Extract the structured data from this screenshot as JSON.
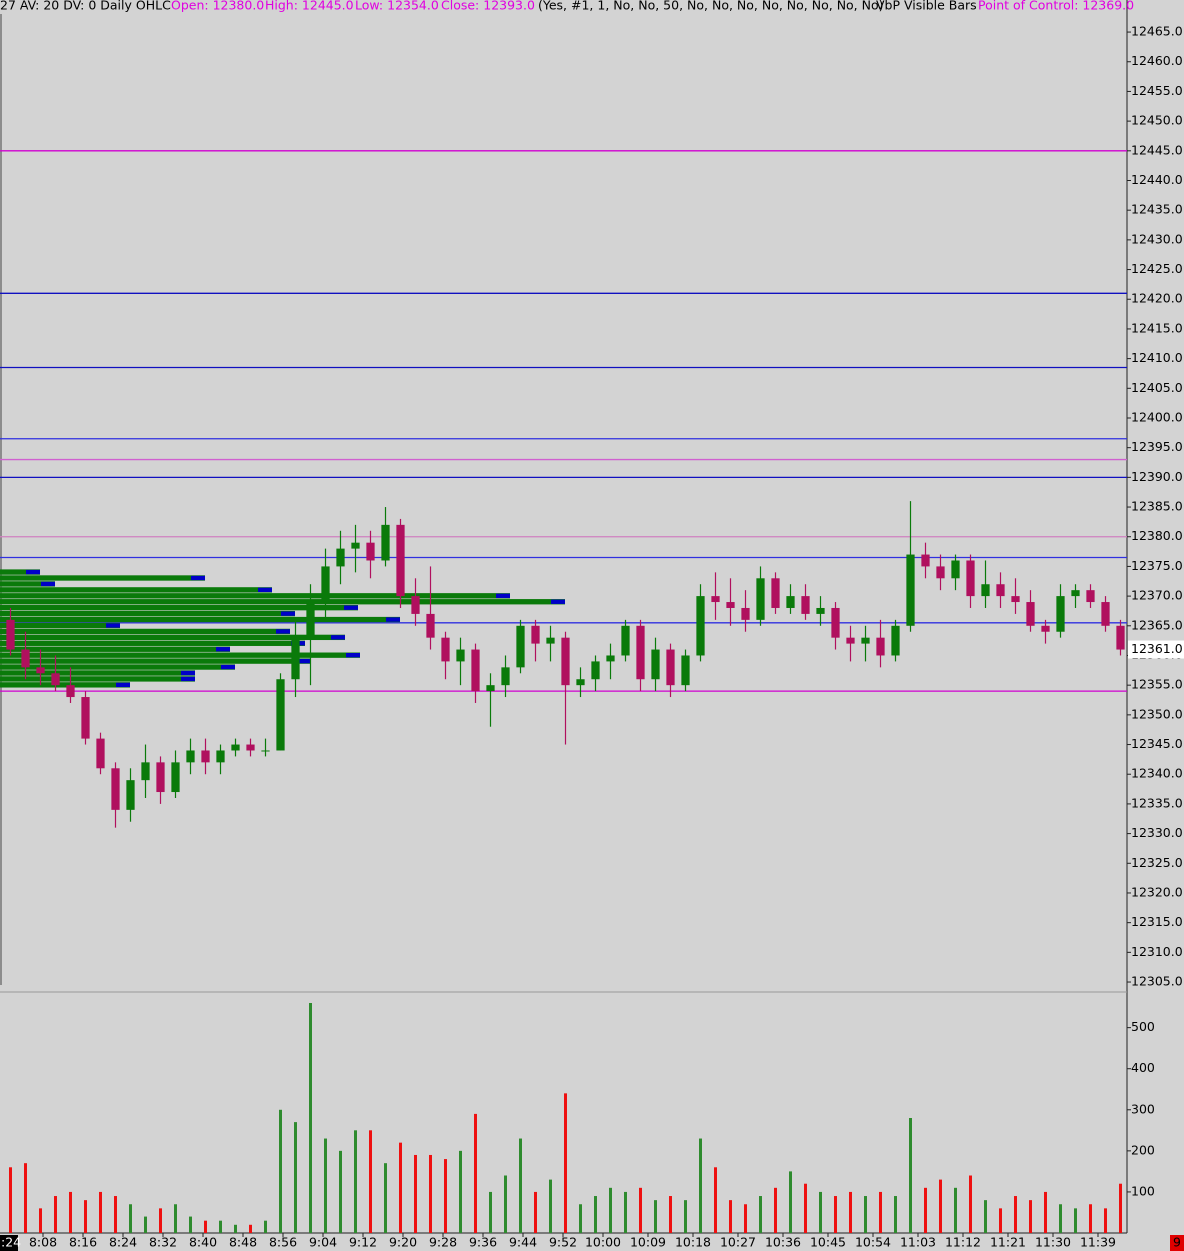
{
  "chart_data": {
    "type": "candlestick",
    "header": {
      "study": "27 AV: 20 DV: 0 Daily OHLC",
      "open": "Open: 12380.0",
      "high": "High: 12445.0",
      "low": "Low: 12354.0",
      "close": "Close: 12393.0",
      "settings": "(Yes, #1, 1, No, No, 50, No, No, No, No, No, No, No, No)",
      "vbp": "VbP Visible Bars",
      "poc": "Point of Control: 12369.0"
    },
    "header_color": "#e000e0",
    "up_color": "#0a7a0a",
    "down_color": "#b0105e",
    "xlim": [
      "8:00",
      "11:45"
    ],
    "xticks": [
      "8:08",
      "8:16",
      "8:24",
      "8:32",
      "8:40",
      "8:48",
      "8:56",
      "9:04",
      "9:12",
      "9:20",
      "9:28",
      "9:36",
      "9:44",
      "9:52",
      "10:00",
      "10:09",
      "10:18",
      "10:27",
      "10:36",
      "10:45",
      "10:54",
      "11:03",
      "11:12",
      "11:21",
      "11:30",
      "11:39"
    ],
    "x": [
      "8:00",
      "8:03",
      "8:06",
      "8:09",
      "8:12",
      "8:15",
      "8:18",
      "8:21",
      "8:24",
      "8:27",
      "8:30",
      "8:33",
      "8:36",
      "8:39",
      "8:42",
      "8:45",
      "8:48",
      "8:51",
      "8:54",
      "8:57",
      "9:00",
      "9:03",
      "9:06",
      "9:09",
      "9:12",
      "9:15",
      "9:18",
      "9:21",
      "9:24",
      "9:27",
      "9:30",
      "9:33",
      "9:36",
      "9:39",
      "9:42",
      "9:45",
      "9:48",
      "9:51",
      "9:54",
      "9:57",
      "10:00",
      "10:03",
      "10:06",
      "10:09",
      "10:12",
      "10:15",
      "10:18",
      "10:21",
      "10:24",
      "10:27",
      "10:30",
      "10:33",
      "10:36",
      "10:39",
      "10:42",
      "10:45",
      "10:48",
      "10:51",
      "10:54",
      "10:57",
      "11:00",
      "11:03",
      "11:06",
      "11:09",
      "11:12",
      "11:15",
      "11:18",
      "11:21",
      "11:24",
      "11:27",
      "11:30",
      "11:33",
      "11:36",
      "11:39",
      "11:42"
    ],
    "open": [
      12366,
      12361,
      12358,
      12357,
      12355,
      12353,
      12346,
      12341,
      12334,
      12339,
      12342,
      12337,
      12342,
      12344,
      12342,
      12344,
      12345,
      12344,
      12344,
      12356,
      12363,
      12369,
      12375,
      12378,
      12379,
      12376,
      12382,
      12370,
      12367,
      12363,
      12359,
      12361,
      12354,
      12355,
      12358,
      12365,
      12362,
      12363,
      12355,
      12356,
      12359,
      12360,
      12365,
      12356,
      12361,
      12355,
      12360,
      12370,
      12369,
      12368,
      12366,
      12373,
      12368,
      12370,
      12367,
      12368,
      12363,
      12362,
      12363,
      12360,
      12365,
      12377,
      12375,
      12373,
      12376,
      12370,
      12372,
      12370,
      12369,
      12365,
      12364,
      12370,
      12371,
      12369,
      12365
    ],
    "high": [
      12368,
      12364,
      12361,
      12360,
      12358,
      12354,
      12347,
      12342,
      12341,
      12345,
      12343,
      12344,
      12346,
      12346,
      12345,
      12346,
      12346,
      12346,
      12357,
      12366,
      12372,
      12378,
      12381,
      12382,
      12381,
      12385,
      12383,
      12373,
      12375,
      12364,
      12363,
      12362,
      12357,
      12360,
      12366,
      12366,
      12365,
      12364,
      12358,
      12360,
      12362,
      12366,
      12366,
      12363,
      12362,
      12361,
      12372,
      12374,
      12373,
      12371,
      12375,
      12374,
      12372,
      12372,
      12370,
      12369,
      12365,
      12365,
      12366,
      12366,
      12386,
      12379,
      12377,
      12377,
      12377,
      12376,
      12374,
      12373,
      12371,
      12366,
      12372,
      12372,
      12372,
      12370,
      12366
    ],
    "low": [
      12360,
      12356,
      12355,
      12354,
      12352,
      12345,
      12340,
      12331,
      12332,
      12336,
      12335,
      12336,
      12340,
      12340,
      12340,
      12343,
      12343,
      12343,
      12344,
      12353,
      12355,
      12366,
      12372,
      12374,
      12373,
      12375,
      12368,
      12365,
      12361,
      12356,
      12355,
      12352,
      12348,
      12353,
      12357,
      12359,
      12359,
      12345,
      12353,
      12354,
      12356,
      12359,
      12354,
      12354,
      12353,
      12354,
      12359,
      12366,
      12365,
      12364,
      12365,
      12367,
      12367,
      12366,
      12365,
      12361,
      12359,
      12359,
      12358,
      12359,
      12364,
      12373,
      12371,
      12371,
      12368,
      12368,
      12368,
      12367,
      12364,
      12362,
      12363,
      12368,
      12368,
      12364,
      12360
    ],
    "close": [
      12361,
      12358,
      12357,
      12355,
      12353,
      12346,
      12341,
      12334,
      12339,
      12342,
      12337,
      12342,
      12344,
      12342,
      12344,
      12345,
      12344,
      12344,
      12356,
      12363,
      12369,
      12375,
      12378,
      12379,
      12376,
      12382,
      12370,
      12367,
      12363,
      12359,
      12361,
      12354,
      12355,
      12358,
      12365,
      12362,
      12363,
      12355,
      12356,
      12359,
      12360,
      12365,
      12356,
      12361,
      12355,
      12360,
      12370,
      12369,
      12368,
      12366,
      12373,
      12368,
      12370,
      12367,
      12368,
      12363,
      12362,
      12363,
      12360,
      12365,
      12377,
      12375,
      12373,
      12376,
      12370,
      12372,
      12370,
      12369,
      12365,
      12364,
      12370,
      12371,
      12369,
      12365,
      12361
    ],
    "ylim": [
      12304.5,
      12470.4
    ],
    "yticks": [
      {
        "value": 12465,
        "label": "12465.0"
      },
      {
        "value": 12460,
        "label": "12460.0"
      },
      {
        "value": 12455,
        "label": "12455.0"
      },
      {
        "value": 12450,
        "label": "12450.0"
      },
      {
        "value": 12445,
        "label": "12445.0"
      },
      {
        "value": 12440,
        "label": "12440.0"
      },
      {
        "value": 12435,
        "label": "12435.0"
      },
      {
        "value": 12430,
        "label": "12430.0"
      },
      {
        "value": 12425,
        "label": "12425.0"
      },
      {
        "value": 12420,
        "label": "12420.0"
      },
      {
        "value": 12415,
        "label": "12415.0"
      },
      {
        "value": 12410,
        "label": "12410.0"
      },
      {
        "value": 12405,
        "label": "12405.0"
      },
      {
        "value": 12400,
        "label": "12400.0"
      },
      {
        "value": 12395,
        "label": "12395.0"
      },
      {
        "value": 12390,
        "label": "12390.0"
      },
      {
        "value": 12385,
        "label": "12385.0"
      },
      {
        "value": 12380,
        "label": "12380.0"
      },
      {
        "value": 12375,
        "label": "12375.0"
      },
      {
        "value": 12370,
        "label": "12370.0"
      },
      {
        "value": 12365,
        "label": "12365.0"
      },
      {
        "value": 12360,
        "label": "12360.0"
      },
      {
        "value": 12355,
        "label": "12355.0"
      },
      {
        "value": 12350,
        "label": "12350.0"
      },
      {
        "value": 12345,
        "label": "12345.0"
      },
      {
        "value": 12340,
        "label": "12340.0"
      },
      {
        "value": 12335,
        "label": "12335.0"
      },
      {
        "value": 12330,
        "label": "12330.0"
      },
      {
        "value": 12325,
        "label": "12325.0"
      },
      {
        "value": 12320,
        "label": "12320.0"
      },
      {
        "value": 12315,
        "label": "12315.0"
      },
      {
        "value": 12310,
        "label": "12310.0"
      },
      {
        "value": 12305,
        "label": "12305.0"
      }
    ],
    "levels": [
      {
        "value": 12445,
        "color": "#d000d0"
      },
      {
        "value": 12421,
        "color": "#1010c0"
      },
      {
        "value": 12408.5,
        "color": "#1010c0"
      },
      {
        "value": 12396.5,
        "color": "#3030e0"
      },
      {
        "value": 12393,
        "color": "#d060d0"
      },
      {
        "value": 12390,
        "color": "#1010c0"
      },
      {
        "value": 12380,
        "color": "#d080c0"
      },
      {
        "value": 12376.5,
        "color": "#3030e0"
      },
      {
        "value": 12365.5,
        "color": "#3030e0"
      },
      {
        "value": 12354,
        "color": "#d000d0"
      }
    ],
    "volume_profile": {
      "color": "#0a7a0a",
      "cap_color": "#0000c8",
      "prices": [
        12374,
        12373,
        12372,
        12371,
        12370,
        12369,
        12368,
        12367,
        12366,
        12365,
        12364,
        12363,
        12362,
        12361,
        12360,
        12359,
        12358,
        12357,
        12356,
        12355
      ],
      "values": [
        40,
        205,
        55,
        272,
        510,
        565,
        358,
        295,
        400,
        120,
        290,
        345,
        305,
        230,
        360,
        310,
        235,
        195,
        195,
        130
      ]
    },
    "last_price": {
      "value": 12361,
      "label": "12361.0"
    },
    "corner_left": ":24",
    "corner_right": "9",
    "volume": {
      "type": "bar",
      "up_color": "#2e8b2e",
      "down_color": "#ee1010",
      "values": [
        160,
        170,
        60,
        90,
        100,
        80,
        100,
        90,
        70,
        40,
        60,
        70,
        40,
        30,
        30,
        20,
        20,
        30,
        300,
        270,
        560,
        230,
        200,
        250,
        250,
        170,
        220,
        190,
        190,
        180,
        200,
        290,
        100,
        140,
        230,
        100,
        130,
        340,
        70,
        90,
        110,
        100,
        110,
        80,
        90,
        80,
        230,
        160,
        80,
        70,
        90,
        110,
        150,
        120,
        100,
        90,
        100,
        90,
        100,
        90,
        280,
        110,
        130,
        110,
        140,
        80,
        60,
        90,
        80,
        100,
        70,
        60,
        70,
        60,
        120
      ],
      "ylim": [
        0,
        560
      ],
      "yticks": [
        100,
        200,
        300,
        400,
        500
      ]
    }
  }
}
